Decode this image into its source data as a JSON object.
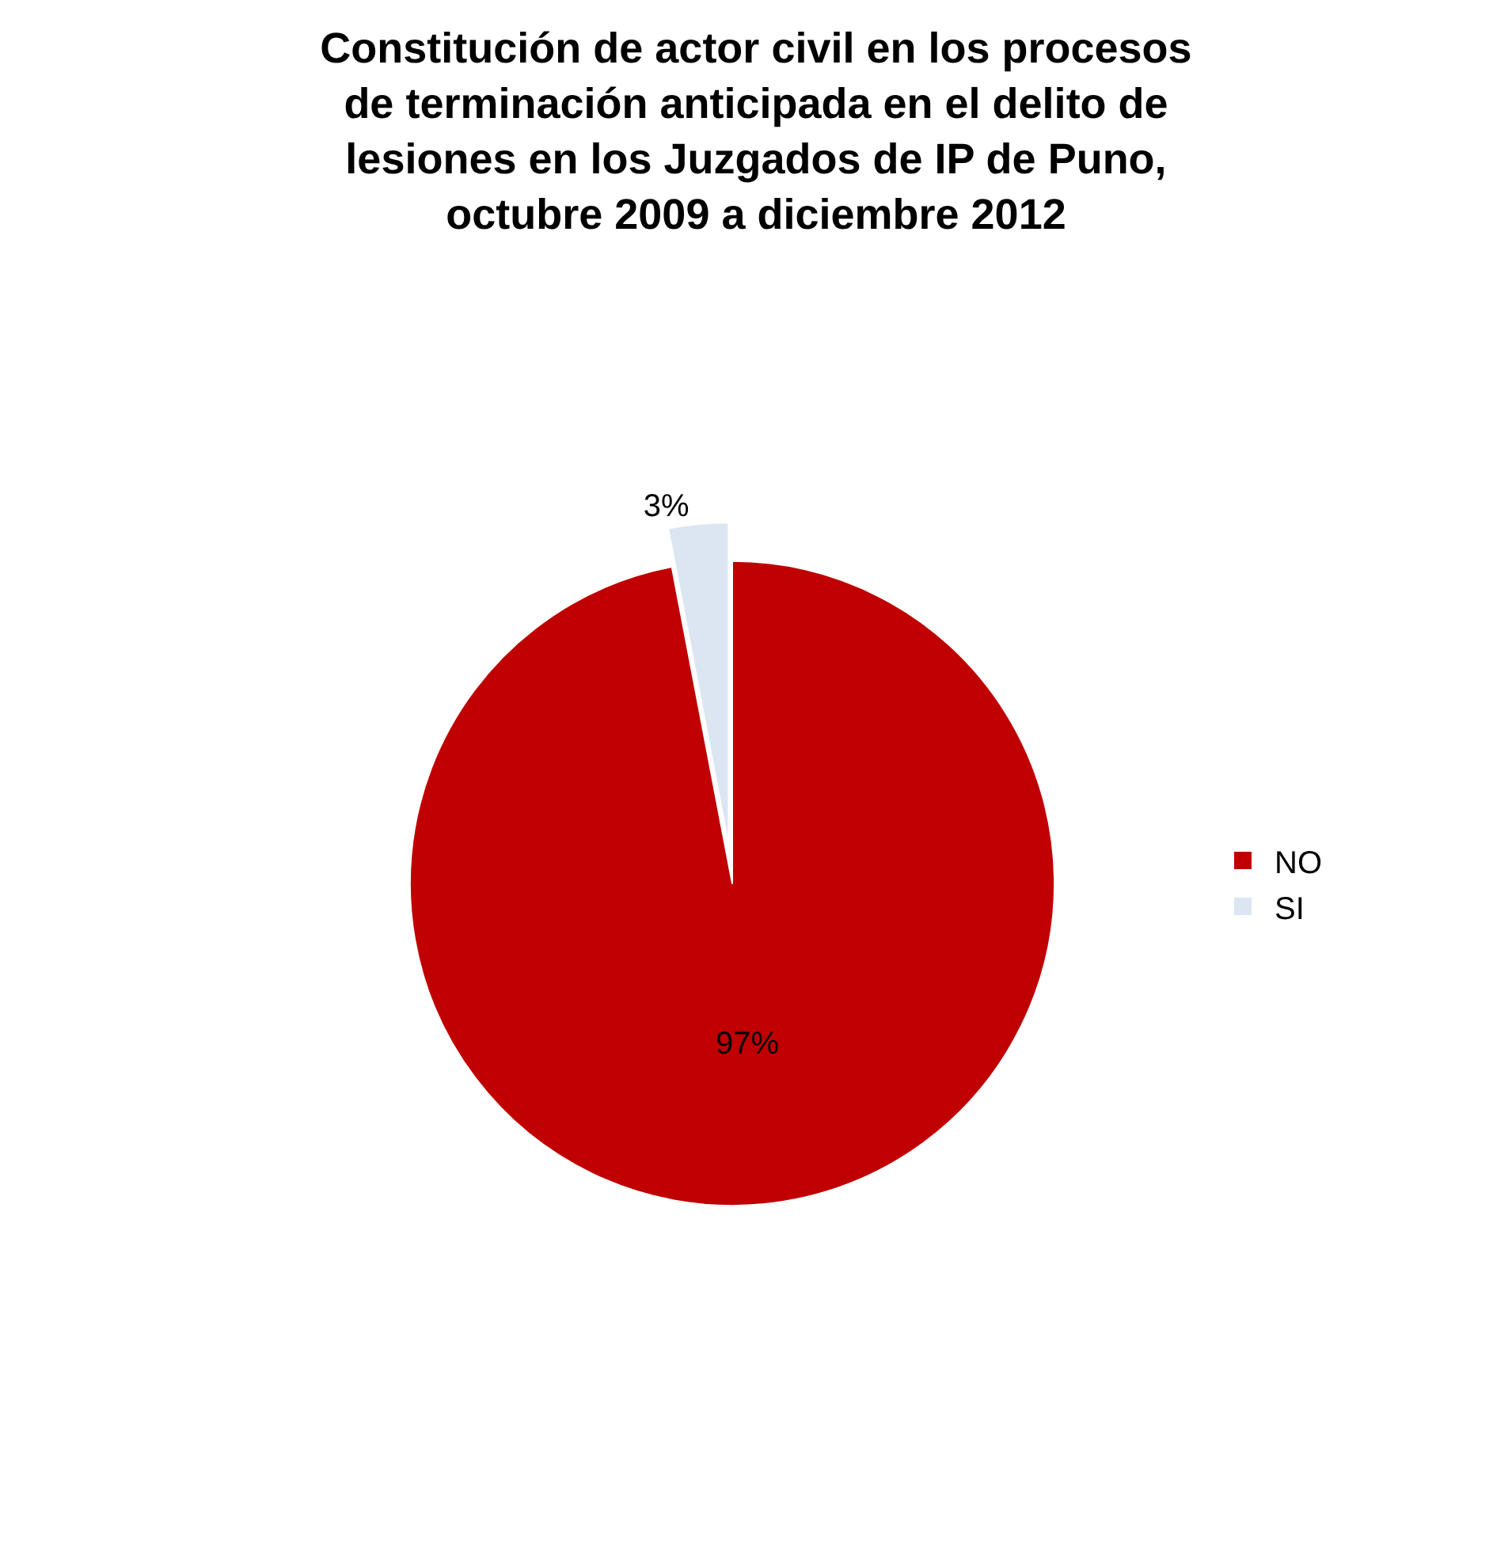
{
  "chart_data": {
    "type": "pie",
    "title": "Constitución de actor civil en los procesos de terminación anticipada en el delito de lesiones en los Juzgados de IP de Puno, octubre 2009 a diciembre 2012",
    "categories": [
      "NO",
      "SI"
    ],
    "values": [
      97,
      3
    ],
    "colors": [
      "#c00000",
      "#dce6f2"
    ],
    "value_labels": [
      "97%",
      "3%"
    ],
    "legend": "right"
  }
}
